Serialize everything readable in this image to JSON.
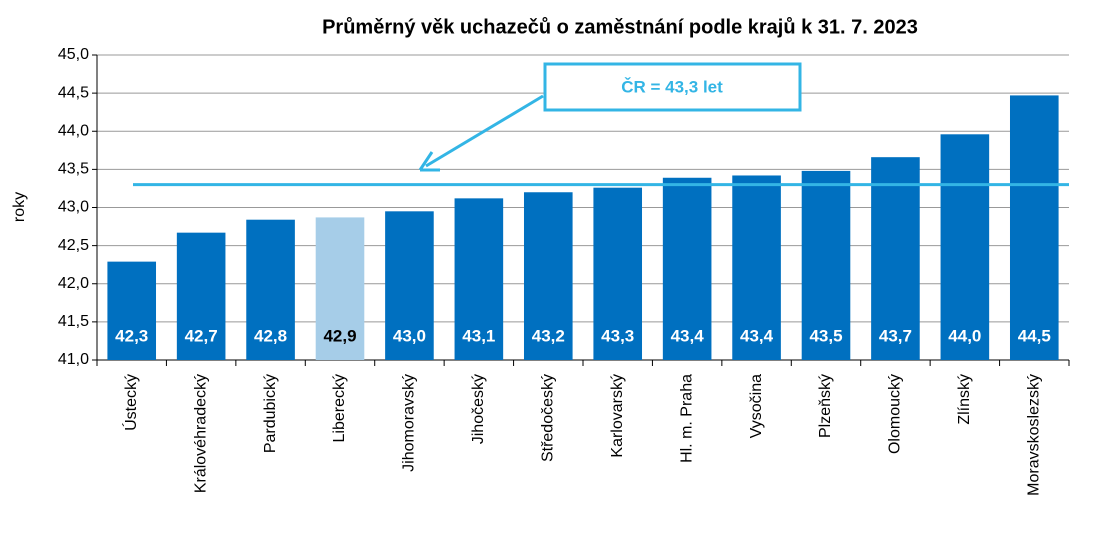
{
  "chart_data": {
    "type": "bar",
    "title": "Průměrný věk uchazečů o zaměstnání podle krajů k 31. 7. 2023",
    "y_label": "roky",
    "categories": [
      "Ústecký",
      "Královéhradecký",
      "Pardubický",
      "Liberecký",
      "Jihomoravský",
      "Jihočeský",
      "Středočeský",
      "Karlovarský",
      "Hl. m. Praha",
      "Vysočina",
      "Plzeňský",
      "Olomoucký",
      "Zlínský",
      "Moravskoslezský"
    ],
    "values": [
      42.29,
      42.67,
      42.84,
      42.87,
      42.95,
      43.12,
      43.2,
      43.26,
      43.39,
      43.42,
      43.48,
      43.66,
      43.96,
      44.47
    ],
    "value_labels": [
      "42,3",
      "42,7",
      "42,8",
      "42,9",
      "43,0",
      "43,1",
      "43,2",
      "43,3",
      "43,4",
      "43,4",
      "43,5",
      "43,7",
      "44,0",
      "44,5"
    ],
    "colors": [
      "#0070c0",
      "#0070c0",
      "#0070c0",
      "#a6cde8",
      "#0070c0",
      "#0070c0",
      "#0070c0",
      "#0070c0",
      "#0070c0",
      "#0070c0",
      "#0070c0",
      "#0070c0",
      "#0070c0",
      "#0070c0"
    ],
    "ylim": [
      41,
      45
    ],
    "yticks": [
      {
        "value": 41,
        "label": "41,0"
      },
      {
        "value": 41.5,
        "label": "41,5"
      },
      {
        "value": 42,
        "label": "42,0"
      },
      {
        "value": 42.5,
        "label": "42,5"
      },
      {
        "value": 43,
        "label": "43,0"
      },
      {
        "value": 43.5,
        "label": "43,5"
      },
      {
        "value": 44,
        "label": "44,0"
      },
      {
        "value": 44.5,
        "label": "44,5"
      },
      {
        "value": 45,
        "label": "45,0"
      }
    ],
    "grid": true,
    "reference_line": {
      "value": 43.3,
      "label": "ČR = 43,3 let",
      "color": "#33b5e5"
    }
  }
}
